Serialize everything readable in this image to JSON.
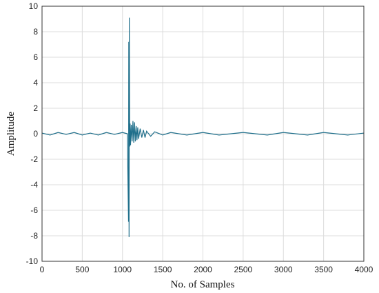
{
  "chart_data": {
    "type": "line",
    "title": "",
    "xlabel": "No. of Samples",
    "ylabel": "Amplitude",
    "xlim": [
      0,
      4000
    ],
    "ylim": [
      -10,
      10
    ],
    "xticks": [
      0,
      500,
      1000,
      1500,
      2000,
      2500,
      3000,
      3500,
      4000
    ],
    "yticks": [
      -10,
      -8,
      -6,
      -4,
      -2,
      0,
      2,
      4,
      6,
      8,
      10
    ],
    "grid": true,
    "legend": "none",
    "colors": {
      "series": "#1f6f8b",
      "grid": "#dcdcdc",
      "frame": "#333333"
    },
    "series": [
      {
        "name": "",
        "x": [
          0,
          100,
          200,
          300,
          400,
          500,
          600,
          700,
          800,
          900,
          1000,
          1060,
          1075,
          1078,
          1082,
          1085,
          1090,
          1095,
          1100,
          1110,
          1120,
          1130,
          1140,
          1150,
          1160,
          1170,
          1180,
          1190,
          1200,
          1220,
          1240,
          1260,
          1280,
          1300,
          1350,
          1400,
          1500,
          1600,
          1800,
          2000,
          2200,
          2500,
          2800,
          3000,
          3300,
          3500,
          3800,
          4000
        ],
        "y": [
          0.05,
          -0.1,
          0.1,
          -0.05,
          0.1,
          -0.1,
          0.05,
          -0.1,
          0.1,
          -0.05,
          0.1,
          0.0,
          -6.9,
          7.2,
          -8.1,
          9.1,
          -1.0,
          0.8,
          -0.9,
          0.7,
          -0.6,
          1.0,
          -0.7,
          0.9,
          -0.6,
          0.6,
          -0.5,
          0.5,
          -0.4,
          0.4,
          -0.3,
          0.3,
          -0.3,
          0.2,
          -0.2,
          0.15,
          -0.1,
          0.1,
          -0.1,
          0.1,
          -0.1,
          0.1,
          -0.1,
          0.1,
          -0.1,
          0.1,
          -0.1,
          0.05
        ]
      }
    ]
  }
}
